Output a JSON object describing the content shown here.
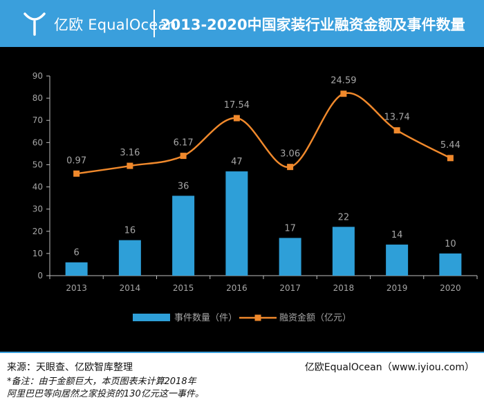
{
  "header": {
    "brand": "亿欧 EqualOcean",
    "title": "2013-2020中国家装行业融资金额及事件数量"
  },
  "colors": {
    "header_bg": "#3a9fdc",
    "bar": "#2e9fd8",
    "line": "#f0892c",
    "background": "#000000"
  },
  "chart_data": {
    "type": "bar+line",
    "categories": [
      "2013",
      "2014",
      "2015",
      "2016",
      "2017",
      "2018",
      "2019",
      "2020"
    ],
    "yticks": [
      "0",
      "10",
      "20",
      "30",
      "40",
      "50",
      "60",
      "70",
      "80",
      "90"
    ],
    "ylim": [
      0,
      90
    ],
    "grid": false,
    "legend_position": "bottom",
    "series": [
      {
        "name": "事件数量（件）",
        "type": "bar",
        "values": [
          6,
          16,
          36,
          47,
          17,
          22,
          14,
          10
        ],
        "labels": [
          "6",
          "16",
          "36",
          "47",
          "17",
          "22",
          "14",
          "10"
        ]
      },
      {
        "name": "融资金额（亿元）",
        "type": "line",
        "values": [
          0.97,
          3.16,
          6.17,
          17.54,
          3.06,
          24.59,
          13.74,
          5.44
        ],
        "labels": [
          "0.97",
          "3.16",
          "6.17",
          "17.54",
          "3.06",
          "24.59",
          "13.74",
          "5.44"
        ],
        "plotted_y": [
          46,
          49.5,
          54,
          71,
          49,
          82,
          65.5,
          53
        ]
      }
    ]
  },
  "footer": {
    "source": "来源：天眼查、亿欧智库整理",
    "credit": "亿欧EqualOcean（www.iyiou.com）",
    "note_line1": "*备注：由于金额巨大，本页图表未计算2018年",
    "note_line2": "阿里巴巴等向居然之家投资的130亿元这一事件。"
  }
}
